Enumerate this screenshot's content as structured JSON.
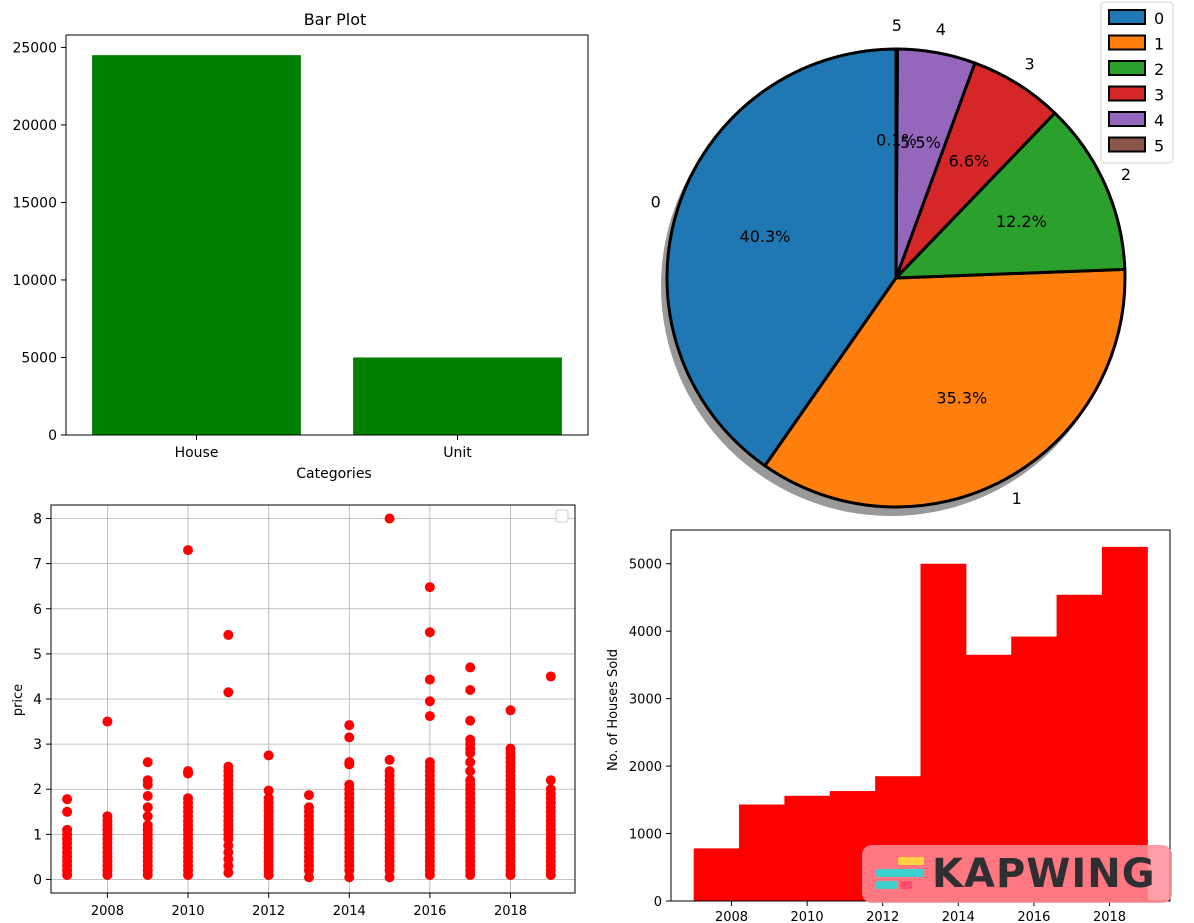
{
  "chart_data": [
    {
      "type": "bar",
      "title": "Bar Plot",
      "xlabel": "Categories",
      "ylabel": "",
      "categories": [
        "House",
        "Unit"
      ],
      "values": [
        24500,
        5000
      ],
      "ylim": [
        0,
        25800
      ],
      "yticks": [
        0,
        5000,
        10000,
        15000,
        20000,
        25000
      ],
      "color": "#008000"
    },
    {
      "type": "pie",
      "labels": [
        "0",
        "1",
        "2",
        "3",
        "4",
        "5"
      ],
      "values": [
        40.3,
        35.3,
        12.2,
        6.6,
        5.5,
        0.1
      ],
      "pct_labels": [
        "40.3%",
        "35.3%",
        "12.2%",
        "6.6%",
        "5.5%",
        "0.1%"
      ],
      "colors": [
        "#1f77b4",
        "#ff7f0e",
        "#2ca02c",
        "#d62728",
        "#9467bd",
        "#8c564b"
      ],
      "legend": "top-right",
      "shadow": true
    },
    {
      "type": "scatter",
      "title": "",
      "xlabel": "",
      "ylabel": "price",
      "grid": true,
      "xlim": [
        2006.6,
        2019.6
      ],
      "ylim": [
        -0.3,
        8.3
      ],
      "xticks": [
        "2008",
        "2010",
        "2012",
        "2014",
        "2016",
        "2018"
      ],
      "yticks": [
        "0",
        "1",
        "2",
        "3",
        "4",
        "5",
        "6",
        "7",
        "8"
      ],
      "color": "#ff0000",
      "points": [
        {
          "x": 2007,
          "y": [
            0.1,
            0.2,
            0.3,
            0.4,
            0.5,
            0.6,
            0.7,
            0.8,
            0.9,
            1.0,
            1.1,
            1.5,
            1.78
          ]
        },
        {
          "x": 2008,
          "y": [
            0.1,
            0.2,
            0.3,
            0.4,
            0.5,
            0.6,
            0.7,
            0.8,
            0.9,
            1.0,
            1.1,
            1.2,
            1.3,
            1.4,
            3.5
          ]
        },
        {
          "x": 2009,
          "y": [
            0.1,
            0.2,
            0.3,
            0.4,
            0.5,
            0.6,
            0.7,
            0.8,
            0.9,
            1.0,
            1.1,
            1.2,
            1.4,
            1.6,
            1.85,
            2.1,
            2.2,
            2.6
          ]
        },
        {
          "x": 2010,
          "y": [
            0.1,
            0.2,
            0.3,
            0.4,
            0.5,
            0.6,
            0.7,
            0.8,
            0.9,
            1.0,
            1.1,
            1.2,
            1.3,
            1.4,
            1.5,
            1.6,
            1.7,
            1.8,
            2.35,
            2.4,
            7.3
          ]
        },
        {
          "x": 2011,
          "y": [
            0.15,
            0.3,
            0.45,
            0.6,
            0.75,
            0.9,
            1.0,
            1.1,
            1.2,
            1.3,
            1.4,
            1.5,
            1.6,
            1.7,
            1.8,
            1.9,
            2.0,
            2.1,
            2.2,
            2.3,
            2.4,
            2.5,
            4.15,
            5.42
          ]
        },
        {
          "x": 2012,
          "y": [
            0.1,
            0.2,
            0.3,
            0.4,
            0.5,
            0.6,
            0.7,
            0.8,
            0.9,
            1.0,
            1.1,
            1.2,
            1.3,
            1.4,
            1.5,
            1.6,
            1.7,
            1.8,
            1.97,
            2.75
          ]
        },
        {
          "x": 2013,
          "y": [
            0.05,
            0.2,
            0.3,
            0.4,
            0.5,
            0.6,
            0.7,
            0.8,
            0.9,
            1.0,
            1.1,
            1.2,
            1.3,
            1.4,
            1.5,
            1.6,
            1.87
          ]
        },
        {
          "x": 2014,
          "y": [
            0.05,
            0.2,
            0.3,
            0.4,
            0.5,
            0.6,
            0.7,
            0.8,
            0.9,
            1.0,
            1.1,
            1.2,
            1.3,
            1.4,
            1.5,
            1.6,
            1.7,
            1.8,
            1.9,
            2.0,
            2.1,
            2.55,
            2.6,
            3.15,
            3.42
          ]
        },
        {
          "x": 2015,
          "y": [
            0.05,
            0.2,
            0.3,
            0.4,
            0.5,
            0.6,
            0.7,
            0.8,
            0.9,
            1.0,
            1.1,
            1.2,
            1.3,
            1.4,
            1.5,
            1.6,
            1.7,
            1.8,
            1.9,
            2.0,
            2.1,
            2.2,
            2.3,
            2.4,
            2.65,
            8.0
          ]
        },
        {
          "x": 2016,
          "y": [
            0.1,
            0.2,
            0.3,
            0.4,
            0.5,
            0.6,
            0.7,
            0.8,
            0.9,
            1.0,
            1.1,
            1.2,
            1.3,
            1.4,
            1.5,
            1.6,
            1.7,
            1.8,
            1.9,
            2.0,
            2.1,
            2.2,
            2.3,
            2.4,
            2.5,
            2.6,
            3.62,
            3.95,
            4.43,
            5.48,
            6.48
          ]
        },
        {
          "x": 2017,
          "y": [
            0.1,
            0.2,
            0.3,
            0.4,
            0.5,
            0.6,
            0.7,
            0.8,
            0.9,
            1.0,
            1.1,
            1.2,
            1.3,
            1.4,
            1.5,
            1.6,
            1.7,
            1.8,
            1.9,
            2.0,
            2.1,
            2.2,
            2.4,
            2.6,
            2.8,
            2.9,
            3.0,
            3.1,
            3.52,
            4.2,
            4.7
          ]
        },
        {
          "x": 2018,
          "y": [
            0.1,
            0.2,
            0.3,
            0.4,
            0.5,
            0.6,
            0.7,
            0.8,
            0.9,
            1.0,
            1.1,
            1.2,
            1.3,
            1.4,
            1.5,
            1.6,
            1.7,
            1.8,
            1.9,
            2.0,
            2.1,
            2.2,
            2.3,
            2.4,
            2.5,
            2.6,
            2.7,
            2.8,
            2.9,
            3.75
          ]
        },
        {
          "x": 2019,
          "y": [
            0.1,
            0.2,
            0.3,
            0.4,
            0.5,
            0.6,
            0.7,
            0.8,
            0.9,
            1.0,
            1.1,
            1.2,
            1.3,
            1.4,
            1.5,
            1.6,
            1.7,
            1.8,
            1.9,
            2.0,
            2.2,
            4.5
          ]
        }
      ]
    },
    {
      "type": "bar",
      "subtype": "histogram",
      "xlabel": "",
      "ylabel": "No. of Houses Sold",
      "color": "#ff0000",
      "bin_edges": [
        2007,
        2008.2,
        2009.4,
        2010.6,
        2011.8,
        2013,
        2014.2,
        2015.4,
        2016.6,
        2017.8,
        2019
      ],
      "values": [
        780,
        1430,
        1560,
        1630,
        1850,
        5000,
        3650,
        3920,
        4540,
        5250
      ],
      "xlim": [
        2006.4,
        2019.6
      ],
      "ylim": [
        0,
        5500
      ],
      "xticks": [
        "2008",
        "2010",
        "2012",
        "2014",
        "2016",
        "2018"
      ],
      "yticks": [
        "0",
        "1000",
        "2000",
        "3000",
        "4000",
        "5000"
      ]
    }
  ],
  "watermark": {
    "text": "KAPWING"
  }
}
